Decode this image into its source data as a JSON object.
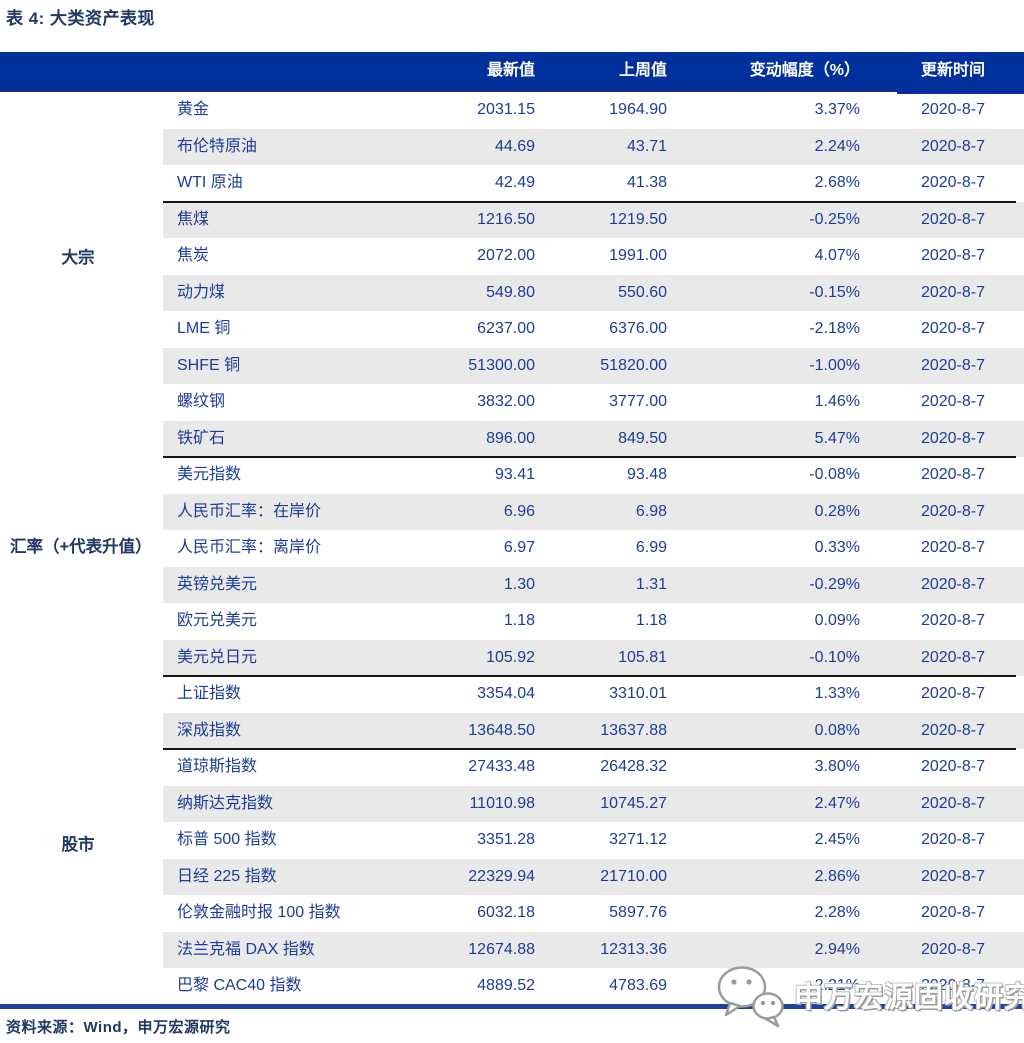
{
  "chart_data": {
    "type": "table",
    "title": "表 4: 大类资产表现",
    "header": [
      "最新值",
      "上周值",
      "变动幅度（%）",
      "更新时间"
    ],
    "row_groups": [
      {
        "label": "大宗",
        "rows": [
          {
            "name": "黄金",
            "latest": "2031.15",
            "prev": "1964.90",
            "change": "3.37%",
            "date": "2020-8-7"
          },
          {
            "name": "布伦特原油",
            "latest": "44.69",
            "prev": "43.71",
            "change": "2.24%",
            "date": "2020-8-7"
          },
          {
            "name": "WTI 原油",
            "latest": "42.49",
            "prev": "41.38",
            "change": "2.68%",
            "date": "2020-8-7"
          },
          {
            "name": "焦煤",
            "latest": "1216.50",
            "prev": "1219.50",
            "change": "-0.25%",
            "date": "2020-8-7"
          },
          {
            "name": "焦炭",
            "latest": "2072.00",
            "prev": "1991.00",
            "change": "4.07%",
            "date": "2020-8-7"
          },
          {
            "name": "动力煤",
            "latest": "549.80",
            "prev": "550.60",
            "change": "-0.15%",
            "date": "2020-8-7"
          },
          {
            "name": "LME 铜",
            "latest": "6237.00",
            "prev": "6376.00",
            "change": "-2.18%",
            "date": "2020-8-7"
          },
          {
            "name": "SHFE 铜",
            "latest": "51300.00",
            "prev": "51820.00",
            "change": "-1.00%",
            "date": "2020-8-7"
          },
          {
            "name": "螺纹钢",
            "latest": "3832.00",
            "prev": "3777.00",
            "change": "1.46%",
            "date": "2020-8-7"
          },
          {
            "name": "铁矿石",
            "latest": "896.00",
            "prev": "849.50",
            "change": "5.47%",
            "date": "2020-8-7"
          }
        ]
      },
      {
        "label": "汇率（+代表升值）",
        "rows": [
          {
            "name": "美元指数",
            "latest": "93.41",
            "prev": "93.48",
            "change": "-0.08%",
            "date": "2020-8-7"
          },
          {
            "name": "人民币汇率：在岸价",
            "latest": "6.96",
            "prev": "6.98",
            "change": "0.28%",
            "date": "2020-8-7"
          },
          {
            "name": "人民币汇率：离岸价",
            "latest": "6.97",
            "prev": "6.99",
            "change": "0.33%",
            "date": "2020-8-7"
          },
          {
            "name": "英镑兑美元",
            "latest": "1.30",
            "prev": "1.31",
            "change": "-0.29%",
            "date": "2020-8-7"
          },
          {
            "name": "欧元兑美元",
            "latest": "1.18",
            "prev": "1.18",
            "change": "0.09%",
            "date": "2020-8-7"
          },
          {
            "name": "美元兑日元",
            "latest": "105.92",
            "prev": "105.81",
            "change": "-0.10%",
            "date": "2020-8-7"
          }
        ]
      },
      {
        "label": "股市",
        "rows": [
          {
            "name": "上证指数",
            "latest": "3354.04",
            "prev": "3310.01",
            "change": "1.33%",
            "date": "2020-8-7"
          },
          {
            "name": "深成指数",
            "latest": "13648.50",
            "prev": "13637.88",
            "change": "0.08%",
            "date": "2020-8-7"
          },
          {
            "name": "道琼斯指数",
            "latest": "27433.48",
            "prev": "26428.32",
            "change": "3.80%",
            "date": "2020-8-7"
          },
          {
            "name": "纳斯达克指数",
            "latest": "11010.98",
            "prev": "10745.27",
            "change": "2.47%",
            "date": "2020-8-7"
          },
          {
            "name": "标普 500 指数",
            "latest": "3351.28",
            "prev": "3271.12",
            "change": "2.45%",
            "date": "2020-8-7"
          },
          {
            "name": "日经 225 指数",
            "latest": "22329.94",
            "prev": "21710.00",
            "change": "2.86%",
            "date": "2020-8-7"
          },
          {
            "name": "伦敦金融时报 100 指数",
            "latest": "6032.18",
            "prev": "5897.76",
            "change": "2.28%",
            "date": "2020-8-7"
          },
          {
            "name": "法兰克福 DAX 指数",
            "latest": "12674.88",
            "prev": "12313.36",
            "change": "2.94%",
            "date": "2020-8-7"
          },
          {
            "name": "巴黎 CAC40 指数",
            "latest": "4889.52",
            "prev": "4783.69",
            "change": "2.21%",
            "date": "2020-8-7"
          }
        ]
      }
    ],
    "separator_after_global_rows": [
      3,
      10,
      16,
      18
    ],
    "source_note": "资料来源：Wind，申万宏源研究",
    "watermark_text": "申万宏源固收研究",
    "layout": {
      "grid": true,
      "stripes": "alternating white / light gray",
      "legend_position": "none"
    },
    "colors": {
      "header_bg": "#00309B",
      "header_text": "#FFFFFF",
      "body_text": "#1D3C96",
      "title_text": "#1F3864",
      "stripe": "#E9E9EA",
      "separator": "#141414",
      "bottom_border": "#1E429E",
      "watermark_outline": "#9B9B9B"
    }
  }
}
